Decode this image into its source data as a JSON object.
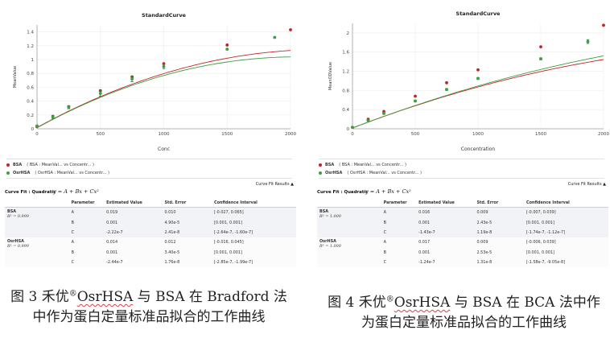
{
  "colors": {
    "bsa": "#c0242b",
    "osrhsa": "#3f9e3f",
    "axis": "#9aa0a6",
    "grid": "#ececec",
    "error_bar": "#1f8a2e"
  },
  "figures": [
    {
      "id": "fig3",
      "chart_data": {
        "type": "scatter",
        "title": "StandardCurve",
        "xlabel": "Conc",
        "ylabel": "MeanValue",
        "xlim": [
          0,
          2000
        ],
        "ylim": [
          0,
          1.5
        ],
        "xticks": [
          0,
          500,
          1000,
          1500,
          2000
        ],
        "yticks": [
          0,
          0.2,
          0.4,
          0.6,
          0.8,
          1,
          1.2,
          1.4
        ],
        "ytick_labels": [
          "0",
          "0.2",
          "0.4",
          "0.6",
          "0.8",
          "1",
          "1.2",
          "1.4"
        ],
        "series": [
          {
            "name": "BSA",
            "color": "#c0242b",
            "x": [
              0,
              125,
              250,
              500,
              750,
              1000,
              1500,
              2000
            ],
            "y": [
              0.03,
              0.18,
              0.32,
              0.55,
              0.75,
              0.94,
              1.21,
              1.43
            ],
            "fit": {
              "A": 0.019,
              "B": 0.001,
              "C": -2.22e-07
            }
          },
          {
            "name": "OsrHSA",
            "color": "#3f9e3f",
            "x": [
              0,
              125,
              250,
              500,
              750,
              1000,
              1500,
              1875
            ],
            "y": [
              0.04,
              0.17,
              0.31,
              0.51,
              0.72,
              0.9,
              1.15,
              1.32
            ],
            "err": [
              0.01,
              0.02,
              0.02,
              0.04,
              0.04,
              0.03,
              0.01,
              0.01
            ],
            "fit": {
              "A": 0.014,
              "B": 0.001,
              "C": -2.44e-07
            }
          }
        ]
      },
      "legend": [
        {
          "series": "BSA",
          "text": "( BSA : MeanVal...    vs  Concentr... )"
        },
        {
          "series": "OsrHSA",
          "text": "( OsrHSA : MeanVal...    vs  Concentr... )"
        }
      ],
      "results_link": "Curve Fit Results ▲",
      "fit_title": "Curve Fit : Quadratic",
      "equation": "y = A + Bx + Cx²",
      "headers": [
        "Parameter",
        "Estimated Value",
        "Std. Error",
        "Confidence Interval"
      ],
      "groups": [
        {
          "name": "BSA",
          "r2": "R² = 0.999",
          "rows": [
            [
              "A",
              "0.019",
              "0.010",
              "[-0.027, 0.065]"
            ],
            [
              "B",
              "0.001",
              "4.90e-5",
              "[0.001, 0.001]"
            ],
            [
              "C",
              "-2.22e-7",
              "2.41e-8",
              "[-2.64e-7, -1.60e-7]"
            ]
          ]
        },
        {
          "name": "OsrHSA",
          "r2": "R² = 0.999",
          "rows": [
            [
              "A",
              "0.014",
              "0.012",
              "[-0.016, 0.045]"
            ],
            [
              "B",
              "0.001",
              "3.40e-5",
              "[0.001, 0.001]"
            ],
            [
              "C",
              "-2.44e-7",
              "1.76e-8",
              "[-2.85e-7, -1.99e-7]"
            ]
          ]
        }
      ],
      "caption": {
        "prefix": "图 3  禾优",
        "reg": "®",
        "brand": "OsrHSA",
        "suffix": " 与 BSA 在 Bradford 法中作为蛋白定量标准品拟合的工作曲线"
      }
    },
    {
      "id": "fig4",
      "chart_data": {
        "type": "scatter",
        "title": "StandardCurve",
        "xlabel": "Concentration",
        "ylabel": "MeanODValue",
        "xlim": [
          0,
          2000
        ],
        "ylim": [
          0,
          2.2
        ],
        "xticks": [
          0,
          500,
          1000,
          1500,
          2000
        ],
        "yticks": [
          0,
          0.4,
          0.8,
          1.2,
          1.6,
          2
        ],
        "ytick_labels": [
          "0",
          "0.4",
          "0.8",
          "1.2",
          "1.6",
          "2"
        ],
        "series": [
          {
            "name": "BSA",
            "color": "#c0242b",
            "x": [
              0,
              125,
              250,
              500,
              750,
              1000,
              1500,
              2000
            ],
            "y": [
              0.03,
              0.2,
              0.36,
              0.68,
              0.96,
              1.23,
              1.71,
              2.16
            ],
            "fit": {
              "A": 0.016,
              "B": 0.001,
              "C": -1.43e-07
            }
          },
          {
            "name": "OsrHSA",
            "color": "#3f9e3f",
            "x": [
              0,
              125,
              250,
              500,
              750,
              1000,
              1500,
              1875
            ],
            "y": [
              0.03,
              0.17,
              0.32,
              0.58,
              0.82,
              1.05,
              1.46,
              1.82
            ],
            "err": [
              0.01,
              0.01,
              0.01,
              0.02,
              0.02,
              0.02,
              0.02,
              0.04
            ],
            "fit": {
              "A": 0.017,
              "B": 0.001,
              "C": -1.24e-07
            }
          }
        ]
      },
      "legend": [
        {
          "series": "BSA",
          "text": "( BSA : MeanVal...    vs  Concentr... )"
        },
        {
          "series": "OsrHSA",
          "text": "( OsrHSA : MeanVal...    vs  Concentr... )"
        }
      ],
      "results_link": "Curve Fit Results ▲",
      "fit_title": "Curve Fit : Quadratic",
      "equation": "y = A + Bx + Cx²",
      "headers": [
        "Parameter",
        "Estimated Value",
        "Std. Error",
        "Confidence Interval"
      ],
      "groups": [
        {
          "name": "BSA",
          "r2": "R² = 1.000",
          "rows": [
            [
              "A",
              "0.016",
              "0.009",
              "[-0.007, 0.039]"
            ],
            [
              "B",
              "0.001",
              "2.43e-5",
              "[0.001, 0.001]"
            ],
            [
              "C",
              "-1.43e-7",
              "1.19e-8",
              "[-1.74e-7, -1.12e-7]"
            ]
          ]
        },
        {
          "name": "OsrHSA",
          "r2": "R² = 1.000",
          "rows": [
            [
              "A",
              "0.017",
              "0.009",
              "[-0.006, 0.039]"
            ],
            [
              "B",
              "0.001",
              "2.53e-5",
              "[0.001, 0.001]"
            ],
            [
              "C",
              "-1.24e-7",
              "1.31e-8",
              "[-1.58e-7, -9.05e-8]"
            ]
          ]
        }
      ],
      "caption": {
        "prefix": "图 4  禾优",
        "reg": "®",
        "brand": "OsrHSA",
        "suffix": " 与 BSA 在 BCA 法中作为蛋白定量标准品拟合的工作曲线"
      }
    }
  ]
}
